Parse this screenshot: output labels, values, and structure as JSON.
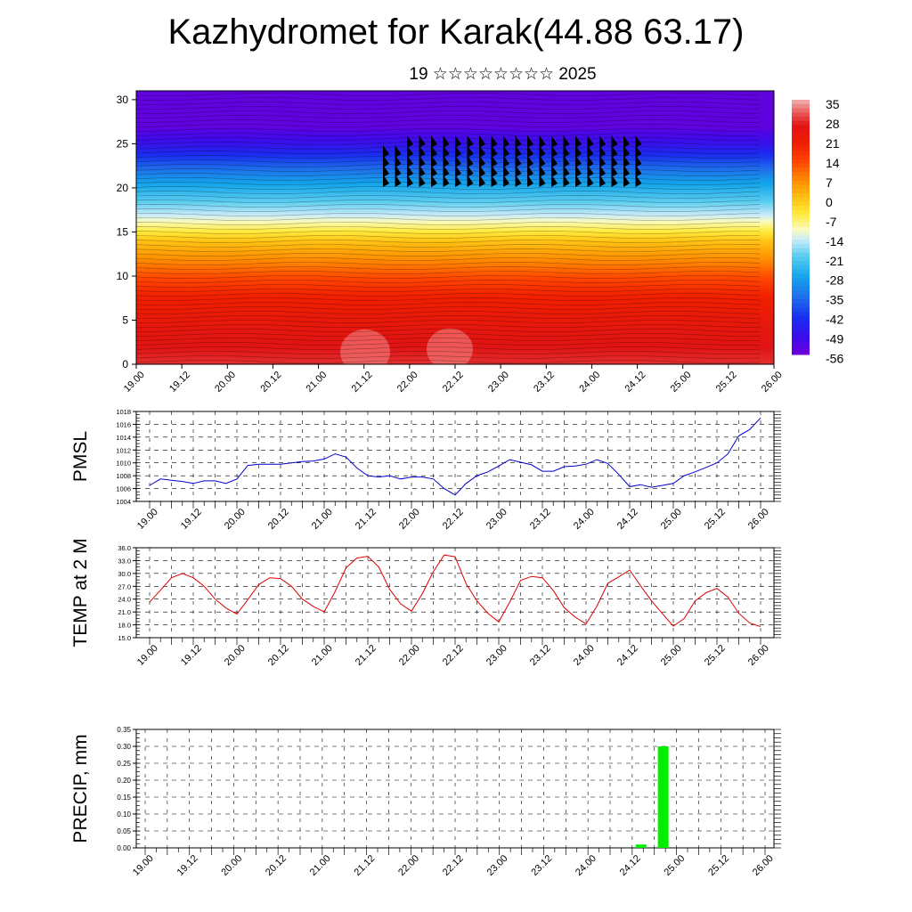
{
  "header": {
    "title": "Kazhydromet for Karak(44.88 63.17)",
    "subtitle": "19 ☆☆☆☆☆☆☆☆ 2025"
  },
  "chart_data": [
    {
      "type": "heatmap",
      "name": "cross-section",
      "title": "",
      "y_ticks": [
        "0",
        "5",
        "10",
        "15",
        "20",
        "25",
        "30"
      ],
      "ylim": [
        0,
        31
      ],
      "x_ticks": [
        "19.00",
        "19.12",
        "20.00",
        "20.12",
        "21.00",
        "21.12",
        "22.00",
        "22.12",
        "23.00",
        "23.12",
        "24.00",
        "24.12",
        "25.00",
        "25.12",
        "26.00"
      ],
      "colorbar_labels": [
        "35",
        "28",
        "21",
        "14",
        "7",
        "0",
        "-7",
        "-14",
        "-21",
        "-28",
        "-35",
        "-42",
        "-49",
        "-56"
      ],
      "colorbar_range": [
        -60,
        38
      ],
      "temperature_by_height": [
        {
          "h": 0,
          "t": 30
        },
        {
          "h": 4,
          "t": 26
        },
        {
          "h": 8,
          "t": 20
        },
        {
          "h": 11,
          "t": 10
        },
        {
          "h": 14,
          "t": 0
        },
        {
          "h": 15.5,
          "t": -8
        },
        {
          "h": 17,
          "t": -16
        },
        {
          "h": 19,
          "t": -24
        },
        {
          "h": 21,
          "t": -32
        },
        {
          "h": 23,
          "t": -42
        },
        {
          "h": 25,
          "t": -52
        },
        {
          "h": 27,
          "t": -58
        },
        {
          "h": 31,
          "t": -58
        }
      ]
    },
    {
      "type": "line",
      "name": "pmsl",
      "ylabel": "PMSL",
      "ylim": [
        1004,
        1018
      ],
      "y_ticks": [
        "1004",
        "1006",
        "1008",
        "1010",
        "1012",
        "1014",
        "1016",
        "1018"
      ],
      "x_ticks": [
        "19.00",
        "19.12",
        "20.00",
        "20.12",
        "21.00",
        "21.12",
        "22.00",
        "22.12",
        "23.00",
        "23.12",
        "24.00",
        "24.12",
        "25.00",
        "25.12",
        "26.00"
      ],
      "color": "#0000cc",
      "series": [
        {
          "x": [
            0,
            0.25,
            0.5,
            0.75,
            1,
            1.25,
            1.5,
            1.75,
            2,
            2.25,
            2.5,
            2.75,
            3,
            3.25,
            3.5,
            3.75,
            4,
            4.25,
            4.5,
            4.75,
            5,
            5.25,
            5.5,
            5.75,
            6,
            6.25,
            6.5,
            6.75,
            7,
            7.25,
            7.5,
            7.75,
            8,
            8.25,
            8.5,
            8.75,
            9,
            9.25,
            9.5,
            9.75,
            10,
            10.25,
            10.5,
            10.75,
            11,
            11.25,
            11.5,
            11.75,
            12,
            12.25,
            12.5,
            12.75,
            13,
            13.25,
            13.5,
            13.75,
            14
          ],
          "values": [
            1006.5,
            1007.5,
            1007.3,
            1007.1,
            1006.8,
            1007.2,
            1007.2,
            1006.8,
            1007.5,
            1009.6,
            1009.8,
            1009.8,
            1009.8,
            1010.0,
            1010.2,
            1010.3,
            1010.6,
            1011.4,
            1010.9,
            1009.2,
            1008.0,
            1007.8,
            1008.0,
            1007.5,
            1007.8,
            1007.8,
            1007.5,
            1006.0,
            1005.0,
            1006.8,
            1008.0,
            1008.6,
            1009.5,
            1010.5,
            1010.1,
            1009.7,
            1008.7,
            1008.7,
            1009.4,
            1009.5,
            1009.8,
            1010.5,
            1009.9,
            1008.2,
            1006.3,
            1006.6,
            1006.2,
            1006.5,
            1006.8,
            1008.0,
            1008.6,
            1009.3,
            1010.0,
            1011.4,
            1014.2,
            1015.2,
            1017.0
          ]
        }
      ]
    },
    {
      "type": "line",
      "name": "temp2m",
      "ylabel": "TEMP at 2 M",
      "ylim": [
        15,
        36
      ],
      "y_ticks": [
        "15.0",
        "18.0",
        "21.0",
        "24.0",
        "27.0",
        "30.0",
        "33.0",
        "36.0"
      ],
      "x_ticks": [
        "19.00",
        "19.12",
        "20.00",
        "20.12",
        "21.00",
        "21.12",
        "22.00",
        "22.12",
        "23.00",
        "23.12",
        "24.00",
        "24.12",
        "25.00",
        "25.12",
        "26.00"
      ],
      "color": "#dd0000",
      "series": [
        {
          "x": [
            0,
            0.25,
            0.5,
            0.75,
            1,
            1.25,
            1.5,
            1.75,
            2,
            2.25,
            2.5,
            2.75,
            3,
            3.25,
            3.5,
            3.75,
            4,
            4.25,
            4.5,
            4.75,
            5,
            5.25,
            5.5,
            5.75,
            6,
            6.25,
            6.5,
            6.75,
            7,
            7.25,
            7.5,
            7.75,
            8,
            8.25,
            8.5,
            8.75,
            9,
            9.25,
            9.5,
            9.75,
            10,
            10.25,
            10.5,
            10.75,
            11,
            11.25,
            11.5,
            11.75,
            12,
            12.25,
            12.5,
            12.75,
            13,
            13.25,
            13.5,
            13.75,
            14
          ],
          "values": [
            23.3,
            26.1,
            29.0,
            30.0,
            29.0,
            27.0,
            24.0,
            21.9,
            20.5,
            23.9,
            27.4,
            29.0,
            28.8,
            27.0,
            24.0,
            22.3,
            21.0,
            25.8,
            31.3,
            33.6,
            34.0,
            31.5,
            26.3,
            22.9,
            21.2,
            25.3,
            30.4,
            34.3,
            33.9,
            27.6,
            23.6,
            20.7,
            18.7,
            23.3,
            28.4,
            29.3,
            29.0,
            26.0,
            22.0,
            19.8,
            18.2,
            22.4,
            27.7,
            29.2,
            30.8,
            27.1,
            23.6,
            20.6,
            17.7,
            19.5,
            23.6,
            25.5,
            26.5,
            24.5,
            20.7,
            18.4,
            17.6
          ]
        }
      ]
    },
    {
      "type": "bar",
      "name": "precip",
      "ylabel": "PRECIP, mm",
      "ylim": [
        0,
        0.35
      ],
      "y_ticks": [
        "0.00",
        "0.05",
        "0.10",
        "0.15",
        "0.20",
        "0.25",
        "0.30",
        "0.35"
      ],
      "x_ticks": [
        "19.00",
        "19.12",
        "20.00",
        "20.12",
        "21.00",
        "21.12",
        "22.00",
        "22.12",
        "23.00",
        "23.12",
        "24.00",
        "24.12",
        "25.00",
        "25.12",
        "26.00"
      ],
      "color": "#00ee00",
      "bars": [
        {
          "x": 11.2,
          "value": 0.01
        },
        {
          "x": 11.7,
          "value": 0.3
        }
      ]
    }
  ]
}
